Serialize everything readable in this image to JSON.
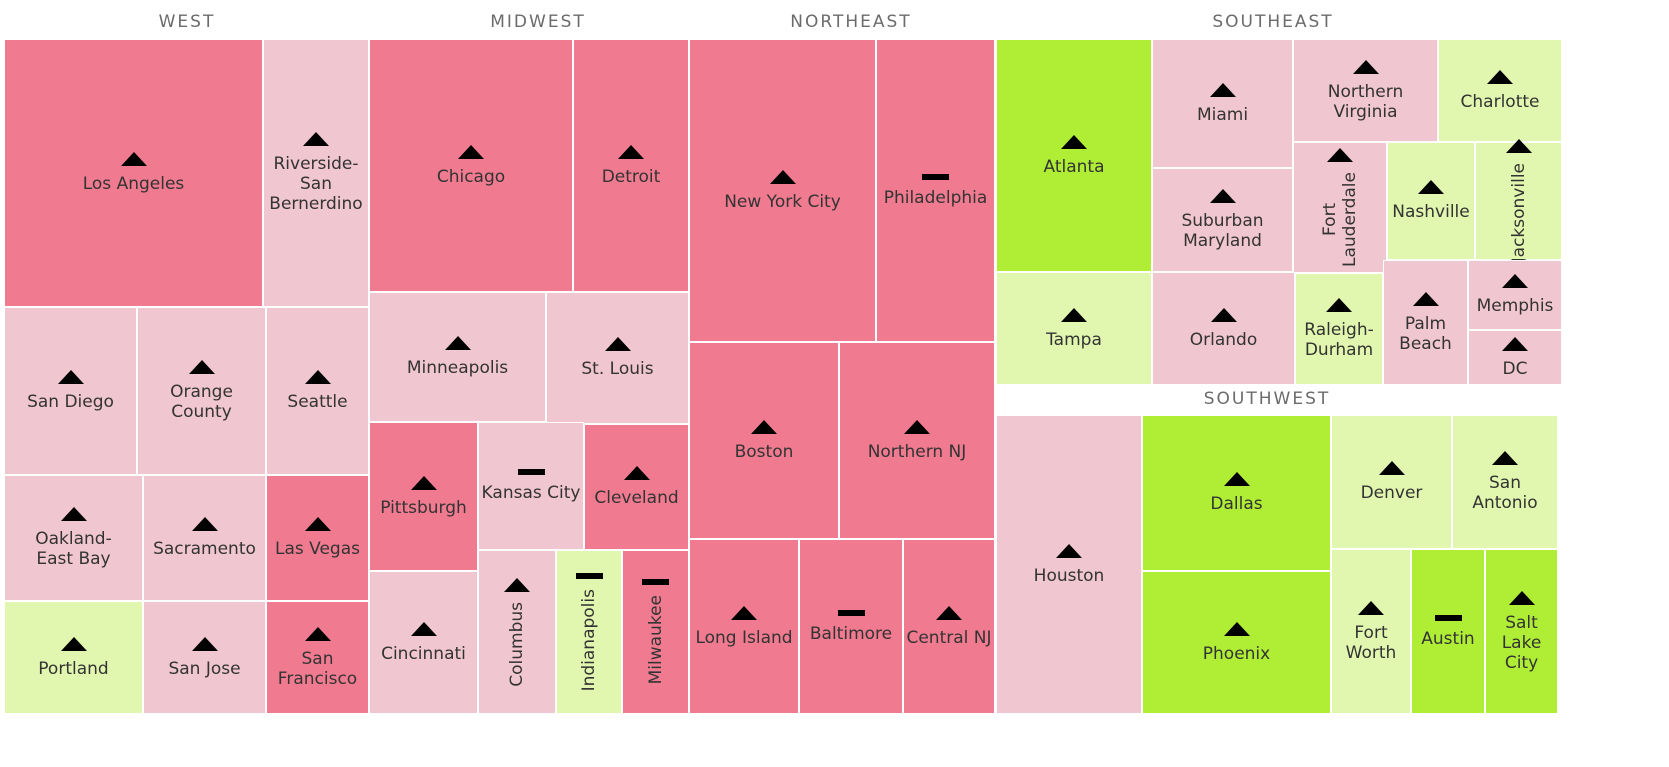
{
  "colors": {
    "dark_pink": "#f07b90",
    "light_pink": "#f0c6d0",
    "light_green": "#e1f7b0",
    "bright_green": "#b0ee36",
    "border": "#ffffff",
    "marker": "#000000"
  },
  "chart_data": {
    "type": "treemap",
    "regions": [
      {
        "name": "WEST",
        "cities": [
          {
            "name": "Los Angeles",
            "color": "dark_pink",
            "trend": "up"
          },
          {
            "name": "Riverside-San Bernerdino",
            "color": "light_pink",
            "trend": "up"
          },
          {
            "name": "San Diego",
            "color": "light_pink",
            "trend": "up"
          },
          {
            "name": "Orange County",
            "color": "light_pink",
            "trend": "up"
          },
          {
            "name": "Seattle",
            "color": "light_pink",
            "trend": "up"
          },
          {
            "name": "Oakland-East Bay",
            "color": "light_pink",
            "trend": "up"
          },
          {
            "name": "Sacramento",
            "color": "light_pink",
            "trend": "up"
          },
          {
            "name": "Las Vegas",
            "color": "dark_pink",
            "trend": "up"
          },
          {
            "name": "Portland",
            "color": "light_green",
            "trend": "up"
          },
          {
            "name": "San Jose",
            "color": "light_pink",
            "trend": "up"
          },
          {
            "name": "San Francisco",
            "color": "dark_pink",
            "trend": "up"
          }
        ]
      },
      {
        "name": "MIDWEST",
        "cities": [
          {
            "name": "Chicago",
            "color": "dark_pink",
            "trend": "up"
          },
          {
            "name": "Detroit",
            "color": "dark_pink",
            "trend": "up"
          },
          {
            "name": "Minneapolis",
            "color": "light_pink",
            "trend": "up"
          },
          {
            "name": "St. Louis",
            "color": "light_pink",
            "trend": "up"
          },
          {
            "name": "Pittsburgh",
            "color": "dark_pink",
            "trend": "up"
          },
          {
            "name": "Kansas City",
            "color": "light_pink",
            "trend": "flat"
          },
          {
            "name": "Cleveland",
            "color": "dark_pink",
            "trend": "up"
          },
          {
            "name": "Cincinnati",
            "color": "light_pink",
            "trend": "up"
          },
          {
            "name": "Columbus",
            "color": "light_pink",
            "trend": "up"
          },
          {
            "name": "Indianapolis",
            "color": "light_green",
            "trend": "flat"
          },
          {
            "name": "Milwaukee",
            "color": "dark_pink",
            "trend": "flat"
          }
        ]
      },
      {
        "name": "NORTHEAST",
        "cities": [
          {
            "name": "New York City",
            "color": "dark_pink",
            "trend": "up"
          },
          {
            "name": "Philadelphia",
            "color": "dark_pink",
            "trend": "flat"
          },
          {
            "name": "Boston",
            "color": "dark_pink",
            "trend": "up"
          },
          {
            "name": "Northern NJ",
            "color": "dark_pink",
            "trend": "up"
          },
          {
            "name": "Long Island",
            "color": "dark_pink",
            "trend": "up"
          },
          {
            "name": "Baltimore",
            "color": "dark_pink",
            "trend": "flat"
          },
          {
            "name": "Central NJ",
            "color": "dark_pink",
            "trend": "up"
          }
        ]
      },
      {
        "name": "SOUTHEAST",
        "cities": [
          {
            "name": "Atlanta",
            "color": "bright_green",
            "trend": "up"
          },
          {
            "name": "Miami",
            "color": "light_pink",
            "trend": "up"
          },
          {
            "name": "Northern Virginia",
            "color": "light_pink",
            "trend": "up"
          },
          {
            "name": "Charlotte",
            "color": "light_green",
            "trend": "up"
          },
          {
            "name": "Suburban Maryland",
            "color": "light_pink",
            "trend": "up"
          },
          {
            "name": "Fort Lauderdale",
            "color": "light_pink",
            "trend": "up"
          },
          {
            "name": "Nashville",
            "color": "light_green",
            "trend": "up"
          },
          {
            "name": "Jacksonville",
            "color": "light_green",
            "trend": "up"
          },
          {
            "name": "Tampa",
            "color": "light_green",
            "trend": "up"
          },
          {
            "name": "Orlando",
            "color": "light_pink",
            "trend": "up"
          },
          {
            "name": "Raleigh-Durham",
            "color": "light_green",
            "trend": "up"
          },
          {
            "name": "Palm Beach",
            "color": "light_pink",
            "trend": "up"
          },
          {
            "name": "Memphis",
            "color": "light_pink",
            "trend": "up"
          },
          {
            "name": "DC",
            "color": "light_pink",
            "trend": "up"
          }
        ]
      },
      {
        "name": "SOUTHWEST",
        "cities": [
          {
            "name": "Houston",
            "color": "light_pink",
            "trend": "up"
          },
          {
            "name": "Dallas",
            "color": "bright_green",
            "trend": "up"
          },
          {
            "name": "Denver",
            "color": "light_green",
            "trend": "up"
          },
          {
            "name": "San Antonio",
            "color": "light_green",
            "trend": "up"
          },
          {
            "name": "Phoenix",
            "color": "bright_green",
            "trend": "up"
          },
          {
            "name": "Fort Worth",
            "color": "light_green",
            "trend": "up"
          },
          {
            "name": "Austin",
            "color": "bright_green",
            "trend": "flat"
          },
          {
            "name": "Salt Lake City",
            "color": "bright_green",
            "trend": "up"
          }
        ]
      }
    ]
  }
}
